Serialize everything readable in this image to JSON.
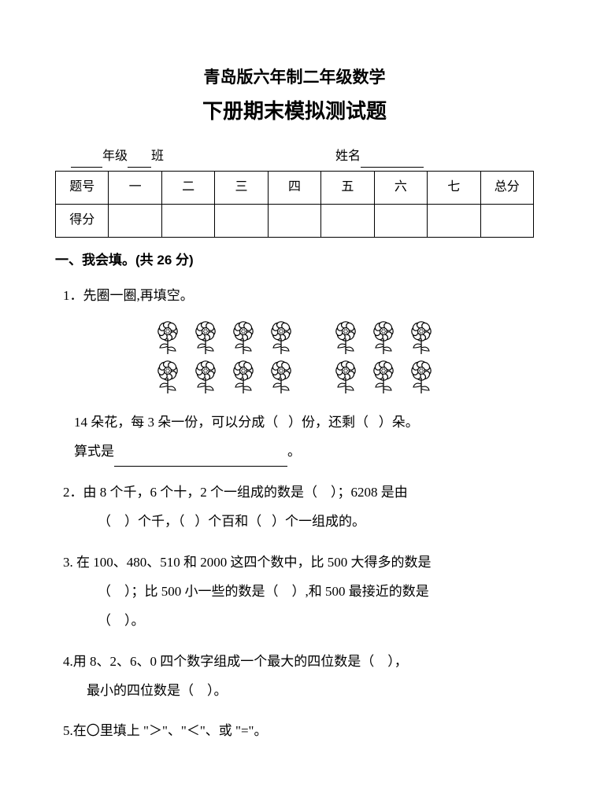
{
  "title": {
    "line1": "青岛版六年制二年级数学",
    "line2": "下册期末模拟测试题"
  },
  "header": {
    "grade": "年级",
    "class": "班",
    "name_label": "姓名"
  },
  "table": {
    "row1": [
      "题号",
      "一",
      "二",
      "三",
      "四",
      "五",
      "六",
      "七",
      "总分"
    ],
    "row2_label": "得分"
  },
  "section1": {
    "title": "一、我会填。(共 26 分)"
  },
  "q1": {
    "num": "1．",
    "prompt": "先圈一圈,再填空。",
    "line1_a": "14 朵花，每 3 朵一份，可以分成（",
    "line1_b": "）份，还剩（",
    "line1_c": "）朵。",
    "line2_a": "算式是",
    "line2_b": "。"
  },
  "q2": {
    "num": "2．",
    "line1_a": "由 8 个千，6 个十，2 个一组成的数是（",
    "line1_b": "）；6208 是由",
    "line2_a": "（",
    "line2_b": "）个千，（",
    "line2_c": "）个百和（",
    "line2_d": "）个一组成的。"
  },
  "q3": {
    "num": "3.",
    "line1": "在 100、480、510 和 2000 这四个数中，比 500 大得多的数是",
    "line2_a": "（",
    "line2_b": "）；比 500 小一些的数是（",
    "line2_c": "）,和 500 最接近的数是",
    "line3_a": "（",
    "line3_b": "）。"
  },
  "q4": {
    "num": "4.",
    "line1_a": "用 8、2、6、0 四个数字组成一个最大的四位数是（",
    "line1_b": "），",
    "line2_a": "最小的四位数是（",
    "line2_b": "）。"
  },
  "q5": {
    "num": "5.",
    "text": "在〇里填上 \"＞\"、\"＜\"、或 \"=\"。"
  },
  "flowers": {
    "row1_count": 7,
    "row2_count": 7,
    "gap_after_index": 3
  }
}
